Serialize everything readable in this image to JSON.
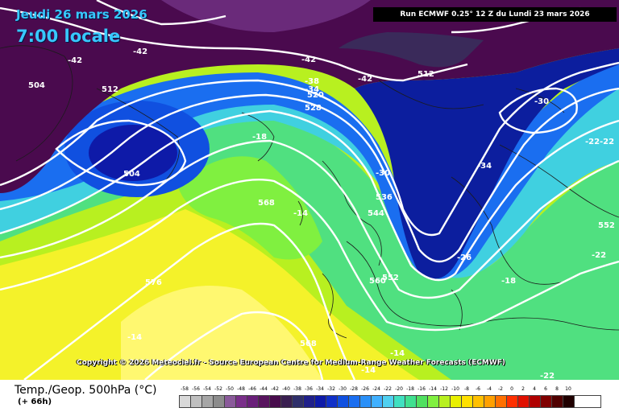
{
  "header": {
    "date": "Jeudi 26 mars 2026",
    "time": "7:00 locale",
    "run": "Run ECMWF 0.25° 12 Z du Lundi 23 mars 2026"
  },
  "copyright": "Copyright © 2026 Meteociel.fr - Source European Centre for Medium-Range Weather Forecasts (ECMWF)",
  "footer": {
    "title": "Temp./Geop. 500hPa (°C)",
    "forecast_hour": "(+ 66h)"
  },
  "colorscale": {
    "labels": [
      "-58",
      "-56",
      "-54",
      "-52",
      "-50",
      "-48",
      "-46",
      "-44",
      "-42",
      "-40",
      "-38",
      "-36",
      "-34",
      "-32",
      "-30",
      "-28",
      "-26",
      "-24",
      "-22",
      "-20",
      "-18",
      "-16",
      "-14",
      "-12",
      "-10",
      "-8",
      "-6",
      "-4",
      "-2",
      "0",
      "2",
      "4",
      "6",
      "8",
      "10"
    ],
    "colors": [
      "#d9d9d9",
      "#bfbfbf",
      "#a6a6a6",
      "#8c8c8c",
      "#8a5a9a",
      "#7a2f8a",
      "#6a1f7a",
      "#58145e",
      "#480b4c",
      "#3a1f50",
      "#2f2f6a",
      "#20208a",
      "#0e1aa8",
      "#1030c8",
      "#1050e0",
      "#1a6ef0",
      "#2a90f8",
      "#40b0ff",
      "#50d0f0",
      "#40e0c0",
      "#40e090",
      "#50e060",
      "#80f040",
      "#b8f020",
      "#e8f000",
      "#ffe000",
      "#ffc000",
      "#ffa000",
      "#ff7000",
      "#ff3000",
      "#e01000",
      "#b00000",
      "#800000",
      "#500000",
      "#200000"
    ]
  },
  "map_labels": {
    "temperature": [
      "-42",
      "-42",
      "-42",
      "-42",
      "-38",
      "-34",
      "-30",
      "-34",
      "-30",
      "-26",
      "-22",
      "-22",
      "-22",
      "-18",
      "-18",
      "-14",
      "-14",
      "-14",
      "-22",
      "-14"
    ],
    "geopotential": [
      "504",
      "512",
      "504",
      "512",
      "520",
      "528",
      "536",
      "544",
      "552",
      "560",
      "568",
      "568",
      "576",
      "552"
    ]
  },
  "colors": {
    "deep_purple": "#4a0a4e",
    "dark_blue": "#0c1e9e",
    "contour": "#ffffff"
  }
}
